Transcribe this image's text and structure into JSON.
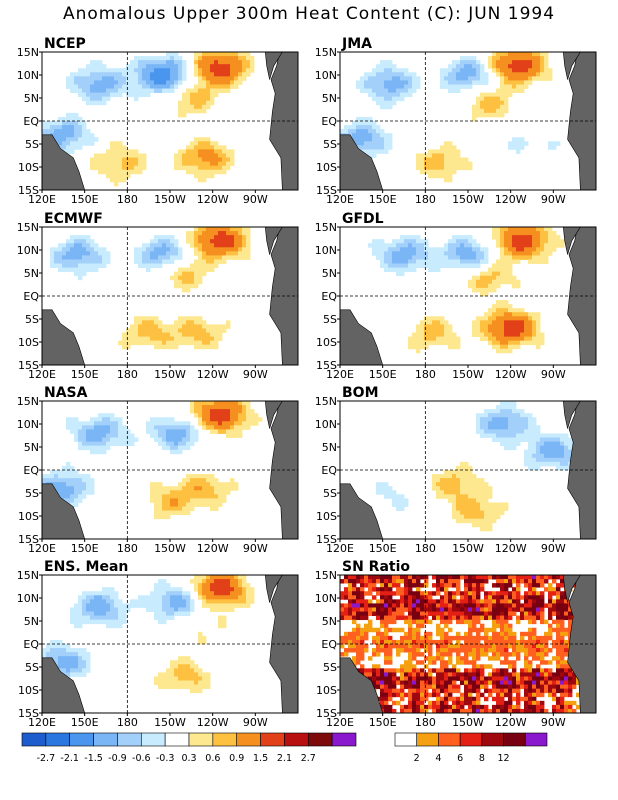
{
  "title": "Anomalous Upper 300m Heat Content (C): JUN 1994",
  "chart_data": {
    "type": "heatmap",
    "x_ticks": [
      "120E",
      "150E",
      "180",
      "150W",
      "120W",
      "90W"
    ],
    "y_ticks": [
      "15N",
      "10N",
      "5N",
      "EQ",
      "5S",
      "10S",
      "15S"
    ],
    "panels": [
      {
        "name": "NCEP",
        "blobs": [
          {
            "lon": 160,
            "lat": 8,
            "v": -0.9
          },
          {
            "lon": 205,
            "lat": 10,
            "v": -1.5
          },
          {
            "lon": 245,
            "lat": 11.5,
            "v": 1.5
          },
          {
            "lon": 225,
            "lat": 5,
            "v": 0.6
          },
          {
            "lon": 235,
            "lat": -8,
            "v": 0.9
          },
          {
            "lon": 175,
            "lat": -9,
            "v": 0.6
          },
          {
            "lon": 135,
            "lat": -3,
            "v": -0.9
          }
        ]
      },
      {
        "name": "JMA",
        "blobs": [
          {
            "lon": 155,
            "lat": 8,
            "v": -0.9
          },
          {
            "lon": 210,
            "lat": 10,
            "v": -0.9
          },
          {
            "lon": 245,
            "lat": 12,
            "v": 1.5
          },
          {
            "lon": 225,
            "lat": 4,
            "v": 0.6
          },
          {
            "lon": 190,
            "lat": -9,
            "v": 0.6
          },
          {
            "lon": 135,
            "lat": -4,
            "v": -0.9
          },
          {
            "lon": 255,
            "lat": -5,
            "v": -0.3
          }
        ]
      },
      {
        "name": "ECMWF",
        "blobs": [
          {
            "lon": 145,
            "lat": 9,
            "v": -0.9
          },
          {
            "lon": 205,
            "lat": 9,
            "v": -0.9
          },
          {
            "lon": 245,
            "lat": 12,
            "v": 1.5
          },
          {
            "lon": 220,
            "lat": 5,
            "v": 0.6
          },
          {
            "lon": 195,
            "lat": -8,
            "v": 0.6
          },
          {
            "lon": 230,
            "lat": -8,
            "v": 0.6
          }
        ]
      },
      {
        "name": "GFDL",
        "blobs": [
          {
            "lon": 165,
            "lat": 9,
            "v": -0.9
          },
          {
            "lon": 210,
            "lat": 9,
            "v": -0.9
          },
          {
            "lon": 248,
            "lat": 12,
            "v": 1.5
          },
          {
            "lon": 225,
            "lat": 4,
            "v": 0.6
          },
          {
            "lon": 240,
            "lat": -7,
            "v": 1.5
          },
          {
            "lon": 185,
            "lat": -8,
            "v": 0.6
          }
        ]
      },
      {
        "name": "NASA",
        "blobs": [
          {
            "lon": 160,
            "lat": 8,
            "v": -0.9
          },
          {
            "lon": 215,
            "lat": 8,
            "v": -0.9
          },
          {
            "lon": 245,
            "lat": 12,
            "v": 1.5
          },
          {
            "lon": 210,
            "lat": -7,
            "v": 0.6
          },
          {
            "lon": 235,
            "lat": -4,
            "v": 0.6
          },
          {
            "lon": 135,
            "lat": -4,
            "v": -0.9
          }
        ]
      },
      {
        "name": "BOM",
        "blobs": [
          {
            "lon": 235,
            "lat": 10,
            "v": -0.9
          },
          {
            "lon": 270,
            "lat": 4,
            "v": -0.9
          },
          {
            "lon": 200,
            "lat": -3,
            "v": 0.6
          },
          {
            "lon": 215,
            "lat": -9,
            "v": 0.6
          },
          {
            "lon": 160,
            "lat": -5,
            "v": -0.3
          }
        ]
      },
      {
        "name": "ENS. Mean",
        "blobs": [
          {
            "lon": 160,
            "lat": 8,
            "v": -0.9
          },
          {
            "lon": 215,
            "lat": 9,
            "v": -0.9
          },
          {
            "lon": 245,
            "lat": 12,
            "v": 1.5
          },
          {
            "lon": 220,
            "lat": -7,
            "v": 0.6
          },
          {
            "lon": 230,
            "lat": 4,
            "v": 0.3
          },
          {
            "lon": 135,
            "lat": -4,
            "v": -0.9
          }
        ]
      }
    ],
    "sn_panel": {
      "name": "SN Ratio"
    },
    "anomaly_colorbar": {
      "labels": [
        "-2.7",
        "-2.1",
        "-1.5",
        "-0.9",
        "-0.6",
        "-0.3",
        "0.3",
        "0.6",
        "0.9",
        "1.5",
        "2.1",
        "2.7"
      ],
      "colors": [
        "#1c5ccc",
        "#2b77e0",
        "#4a96ee",
        "#7ab6f5",
        "#a2d0fb",
        "#c8ecfd",
        "#ffffff",
        "#fde890",
        "#fdc040",
        "#f59020",
        "#e24018",
        "#b81010",
        "#7e0b0b",
        "#8a18cc"
      ]
    },
    "sn_colorbar": {
      "labels": [
        "2",
        "4",
        "6",
        "8",
        "12"
      ],
      "colors": [
        "#ffffff",
        "#f5a010",
        "#ff6020",
        "#e42014",
        "#a00810",
        "#780010",
        "#8a18cc"
      ]
    }
  }
}
